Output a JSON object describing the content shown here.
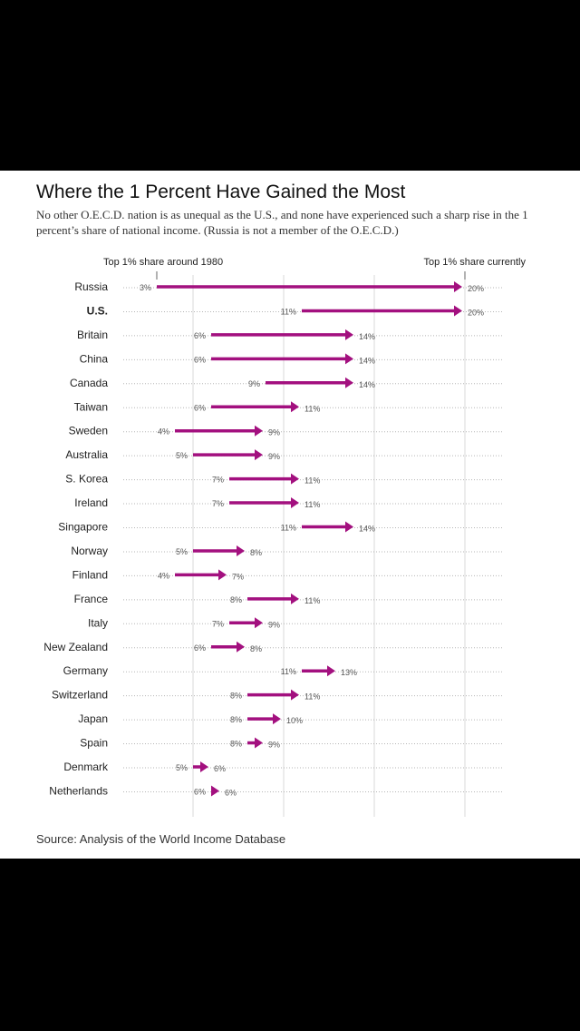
{
  "chart_data": {
    "type": "arrow-dot",
    "title": "Where the 1 Percent Have Gained the Most",
    "subtitle": "No other O.E.C.D. nation is as unequal as the U.S., and none have experienced such a sharp rise in the 1 percent’s share of national income. (Russia is not a member of the O.E.C.D.)",
    "start_label": "Top 1% share around 1980",
    "end_label": "Top 1% share currently",
    "source": "Source: Analysis of the World Income Database",
    "accent_color": "#a3107f",
    "xlim": [
      0,
      22
    ],
    "gridlines": [
      5,
      10,
      15,
      20
    ],
    "rows": [
      {
        "country": "Russia",
        "start": 3,
        "end": 20,
        "start_label": "3%",
        "end_label": "20%",
        "bold": false
      },
      {
        "country": "U.S.",
        "start": 11,
        "end": 20,
        "start_label": "11%",
        "end_label": "20%",
        "bold": true
      },
      {
        "country": "Britain",
        "start": 6,
        "end": 14,
        "start_label": "6%",
        "end_label": "14%",
        "bold": false
      },
      {
        "country": "China",
        "start": 6,
        "end": 14,
        "start_label": "6%",
        "end_label": "14%",
        "bold": false
      },
      {
        "country": "Canada",
        "start": 9,
        "end": 14,
        "start_label": "9%",
        "end_label": "14%",
        "bold": false
      },
      {
        "country": "Taiwan",
        "start": 6,
        "end": 11,
        "start_label": "6%",
        "end_label": "11%",
        "bold": false
      },
      {
        "country": "Sweden",
        "start": 4,
        "end": 9,
        "start_label": "4%",
        "end_label": "9%",
        "bold": false
      },
      {
        "country": "Australia",
        "start": 5,
        "end": 9,
        "start_label": "5%",
        "end_label": "9%",
        "bold": false
      },
      {
        "country": "S. Korea",
        "start": 7,
        "end": 11,
        "start_label": "7%",
        "end_label": "11%",
        "bold": false
      },
      {
        "country": "Ireland",
        "start": 7,
        "end": 11,
        "start_label": "7%",
        "end_label": "11%",
        "bold": false
      },
      {
        "country": "Singapore",
        "start": 11,
        "end": 14,
        "start_label": "11%",
        "end_label": "14%",
        "bold": false
      },
      {
        "country": "Norway",
        "start": 5,
        "end": 8,
        "start_label": "5%",
        "end_label": "8%",
        "bold": false
      },
      {
        "country": "Finland",
        "start": 4,
        "end": 7,
        "start_label": "4%",
        "end_label": "7%",
        "bold": false
      },
      {
        "country": "France",
        "start": 8,
        "end": 11,
        "start_label": "8%",
        "end_label": "11%",
        "bold": false
      },
      {
        "country": "Italy",
        "start": 7,
        "end": 9,
        "start_label": "7%",
        "end_label": "9%",
        "bold": false
      },
      {
        "country": "New Zealand",
        "start": 6,
        "end": 8,
        "start_label": "6%",
        "end_label": "8%",
        "bold": false
      },
      {
        "country": "Germany",
        "start": 11,
        "end": 13,
        "start_label": "11%",
        "end_label": "13%",
        "bold": false
      },
      {
        "country": "Switzerland",
        "start": 8,
        "end": 11,
        "start_label": "8%",
        "end_label": "11%",
        "bold": false
      },
      {
        "country": "Japan",
        "start": 8,
        "end": 10,
        "start_label": "8%",
        "end_label": "10%",
        "bold": false
      },
      {
        "country": "Spain",
        "start": 8,
        "end": 9,
        "start_label": "8%",
        "end_label": "9%",
        "bold": false
      },
      {
        "country": "Denmark",
        "start": 5,
        "end": 6,
        "start_label": "5%",
        "end_label": "6%",
        "bold": false
      },
      {
        "country": "Netherlands",
        "start": 6,
        "end": 6,
        "start_label": "6%",
        "end_label": "6%",
        "bold": false
      }
    ]
  }
}
